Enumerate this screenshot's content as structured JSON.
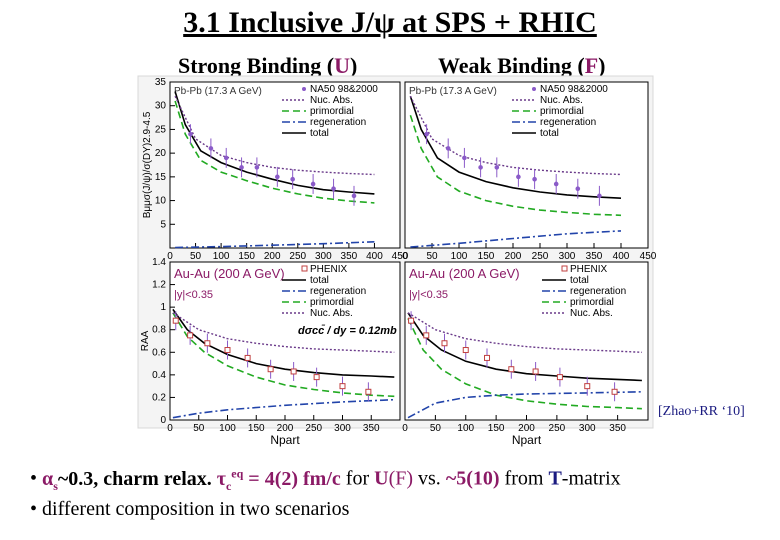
{
  "slide": {
    "title": "3.1 Inclusive J/ψ at SPS + RHIC",
    "subtitle_left": {
      "prefix": "Strong Binding (",
      "key": "U",
      "suffix": ")"
    },
    "subtitle_right": {
      "prefix": "Weak Binding (",
      "key": "F",
      "suffix": ")"
    },
    "citation": "[Zhao+RR ‘10]",
    "bullet1": {
      "b": "•",
      "alpha": "α",
      "alpha_sub": "s",
      "val": "~0.3, charm relax. ",
      "tau": "τ",
      "tau_sub": "c",
      "tau_sup": "eq",
      "tau_val": " = 4(2) fm/c",
      "for": "  for ",
      "U": "U",
      "Fp": "(F)",
      "vs": " vs. ",
      "five": "~5(10)",
      "from": "  from ",
      "T": "T",
      "matrix": "-matrix"
    },
    "bullet2": {
      "b": "•",
      "text": "different composition in two scenarios"
    }
  },
  "colors": {
    "data": "#8a5ac8",
    "nuc": "#6a3a8a",
    "prim": "#22aa22",
    "regen": "#2244aa",
    "total": "#000000",
    "accent": "#8b1a66"
  },
  "chart_data": [
    {
      "type": "line",
      "panel": "SPS strong binding",
      "annotation": "Pb-Pb (17.3 A GeV)",
      "xlabel": "",
      "ylabel": "Bμμσ(J/ψ)/σ(DY)2.9-4.5",
      "xlim": [
        0,
        450
      ],
      "ylim": [
        0,
        35
      ],
      "ytick_labels": [
        "5",
        "10",
        "15",
        "20",
        "25",
        "30",
        "35"
      ],
      "xtick_labels": [
        "0",
        "50",
        "100",
        "150",
        "200",
        "250",
        "300",
        "350",
        "400",
        "450"
      ],
      "legend": [
        "NA50 98&2000",
        "Nuc. Abs.",
        "primordial",
        "regeneration",
        "total"
      ],
      "series": [
        {
          "name": "total",
          "x": [
            10,
            30,
            60,
            100,
            150,
            200,
            250,
            300,
            350,
            400
          ],
          "values": [
            33,
            26,
            20.5,
            18,
            16,
            14.5,
            13.2,
            12.3,
            11.8,
            11.4
          ]
        },
        {
          "name": "primordial",
          "x": [
            10,
            30,
            60,
            100,
            150,
            200,
            250,
            300,
            350,
            400
          ],
          "values": [
            31,
            24,
            18.5,
            16,
            14.2,
            12.6,
            11.4,
            10.5,
            9.9,
            9.5
          ]
        },
        {
          "name": "Nuc. Abs.",
          "x": [
            10,
            50,
            100,
            150,
            200,
            250,
            300,
            350,
            400
          ],
          "values": [
            32,
            23,
            19.5,
            18,
            17,
            16.4,
            16,
            15.7,
            15.5
          ]
        },
        {
          "name": "regeneration",
          "x": [
            10,
            100,
            200,
            300,
            400
          ],
          "values": [
            0.1,
            0.3,
            0.6,
            0.9,
            1.3
          ]
        },
        {
          "name": "NA50 98&2000",
          "x": [
            40,
            80,
            110,
            140,
            170,
            210,
            240,
            280,
            320,
            360
          ],
          "values": [
            24,
            21,
            19,
            17,
            17,
            15,
            14.5,
            13.5,
            12.5,
            11
          ]
        }
      ]
    },
    {
      "type": "line",
      "panel": "SPS weak binding",
      "annotation": "Pb-Pb (17.3 A GeV)",
      "xlabel": "",
      "ylabel": "",
      "xlim": [
        0,
        450
      ],
      "ylim": [
        0,
        35
      ],
      "xtick_labels": [
        "0",
        "50",
        "100",
        "150",
        "200",
        "250",
        "300",
        "350",
        "400",
        "450"
      ],
      "legend": [
        "NA50 98&2000",
        "Nuc. Abs.",
        "primordial",
        "regeneration",
        "total"
      ],
      "series": [
        {
          "name": "total",
          "x": [
            10,
            30,
            60,
            100,
            150,
            200,
            250,
            300,
            350,
            400
          ],
          "values": [
            32,
            25,
            19,
            16,
            14,
            12.7,
            11.8,
            11.2,
            10.8,
            10.5
          ]
        },
        {
          "name": "primordial",
          "x": [
            10,
            30,
            60,
            100,
            150,
            200,
            250,
            300,
            350,
            400
          ],
          "values": [
            28,
            21,
            15,
            12,
            10,
            8.8,
            8,
            7.5,
            7.1,
            6.9
          ]
        },
        {
          "name": "Nuc. Abs.",
          "x": [
            10,
            50,
            100,
            150,
            200,
            250,
            300,
            350,
            400
          ],
          "values": [
            32,
            23,
            19.5,
            18,
            17,
            16.4,
            16,
            15.7,
            15.5
          ]
        },
        {
          "name": "regeneration",
          "x": [
            10,
            100,
            200,
            300,
            400
          ],
          "values": [
            0.2,
            1,
            2,
            3,
            3.6
          ]
        },
        {
          "name": "NA50 98&2000",
          "x": [
            40,
            80,
            110,
            140,
            170,
            210,
            240,
            280,
            320,
            360
          ],
          "values": [
            24,
            21,
            19,
            17,
            17,
            15,
            14.5,
            13.5,
            12.5,
            11
          ]
        }
      ]
    },
    {
      "type": "line",
      "panel": "RHIC strong binding",
      "annotation": "Au-Au (200 A GeV)",
      "annotation2": "|y|<0.35",
      "formula": "dσcc̄ / dy = 0.12mb",
      "xlabel": "Npart",
      "ylabel": "RAA",
      "xlim": [
        0,
        400
      ],
      "ylim": [
        0,
        1.4
      ],
      "ytick_labels": [
        "0",
        "0.2",
        "0.4",
        "0.6",
        "0.8",
        "1",
        "1.2",
        "1.4"
      ],
      "xtick_labels": [
        "0",
        "50",
        "100",
        "150",
        "200",
        "250",
        "300",
        "350"
      ],
      "legend": [
        "PHENIX",
        "total",
        "regeneration",
        "primordial",
        "Nuc. Abs."
      ],
      "series": [
        {
          "name": "total",
          "x": [
            5,
            30,
            60,
            100,
            150,
            200,
            250,
            300,
            350,
            390
          ],
          "values": [
            0.98,
            0.8,
            0.68,
            0.58,
            0.5,
            0.45,
            0.42,
            0.4,
            0.39,
            0.38
          ]
        },
        {
          "name": "primordial",
          "x": [
            5,
            30,
            60,
            100,
            150,
            200,
            250,
            300,
            350,
            390
          ],
          "values": [
            0.95,
            0.74,
            0.6,
            0.48,
            0.38,
            0.31,
            0.27,
            0.24,
            0.22,
            0.21
          ]
        },
        {
          "name": "Nuc. Abs.",
          "x": [
            5,
            50,
            100,
            150,
            200,
            250,
            300,
            350,
            390
          ],
          "values": [
            0.95,
            0.8,
            0.72,
            0.68,
            0.65,
            0.63,
            0.62,
            0.61,
            0.6
          ]
        },
        {
          "name": "regeneration",
          "x": [
            5,
            50,
            100,
            200,
            300,
            390
          ],
          "values": [
            0.02,
            0.06,
            0.09,
            0.13,
            0.16,
            0.18
          ]
        },
        {
          "name": "PHENIX",
          "x": [
            10,
            35,
            65,
            100,
            135,
            175,
            215,
            255,
            300,
            345
          ],
          "values": [
            0.88,
            0.75,
            0.68,
            0.62,
            0.55,
            0.45,
            0.43,
            0.38,
            0.3,
            0.25
          ]
        }
      ]
    },
    {
      "type": "line",
      "panel": "RHIC weak binding",
      "annotation": "Au-Au (200 A GeV)",
      "annotation2": "|y|<0.35",
      "xlabel": "Npart",
      "ylabel": "",
      "xlim": [
        0,
        400
      ],
      "ylim": [
        0,
        1.4
      ],
      "xtick_labels": [
        "0",
        "50",
        "100",
        "150",
        "200",
        "250",
        "300",
        "350"
      ],
      "legend": [
        "PHENIX",
        "total",
        "regeneration",
        "primordial",
        "Nuc. Abs."
      ],
      "series": [
        {
          "name": "total",
          "x": [
            5,
            30,
            60,
            100,
            150,
            200,
            250,
            300,
            350,
            390
          ],
          "values": [
            0.95,
            0.75,
            0.62,
            0.52,
            0.45,
            0.41,
            0.39,
            0.37,
            0.36,
            0.35
          ]
        },
        {
          "name": "primordial",
          "x": [
            5,
            30,
            60,
            100,
            150,
            200,
            250,
            300,
            350,
            390
          ],
          "values": [
            0.9,
            0.62,
            0.45,
            0.32,
            0.22,
            0.17,
            0.14,
            0.12,
            0.11,
            0.1
          ]
        },
        {
          "name": "Nuc. Abs.",
          "x": [
            5,
            50,
            100,
            150,
            200,
            250,
            300,
            350,
            390
          ],
          "values": [
            0.95,
            0.8,
            0.72,
            0.68,
            0.65,
            0.63,
            0.62,
            0.61,
            0.6
          ]
        },
        {
          "name": "regeneration",
          "x": [
            5,
            50,
            100,
            150,
            200,
            300,
            390
          ],
          "values": [
            0.02,
            0.15,
            0.2,
            0.22,
            0.23,
            0.24,
            0.25
          ]
        },
        {
          "name": "PHENIX",
          "x": [
            10,
            35,
            65,
            100,
            135,
            175,
            215,
            255,
            300,
            345
          ],
          "values": [
            0.88,
            0.75,
            0.68,
            0.62,
            0.55,
            0.45,
            0.43,
            0.38,
            0.3,
            0.25
          ]
        }
      ]
    }
  ]
}
